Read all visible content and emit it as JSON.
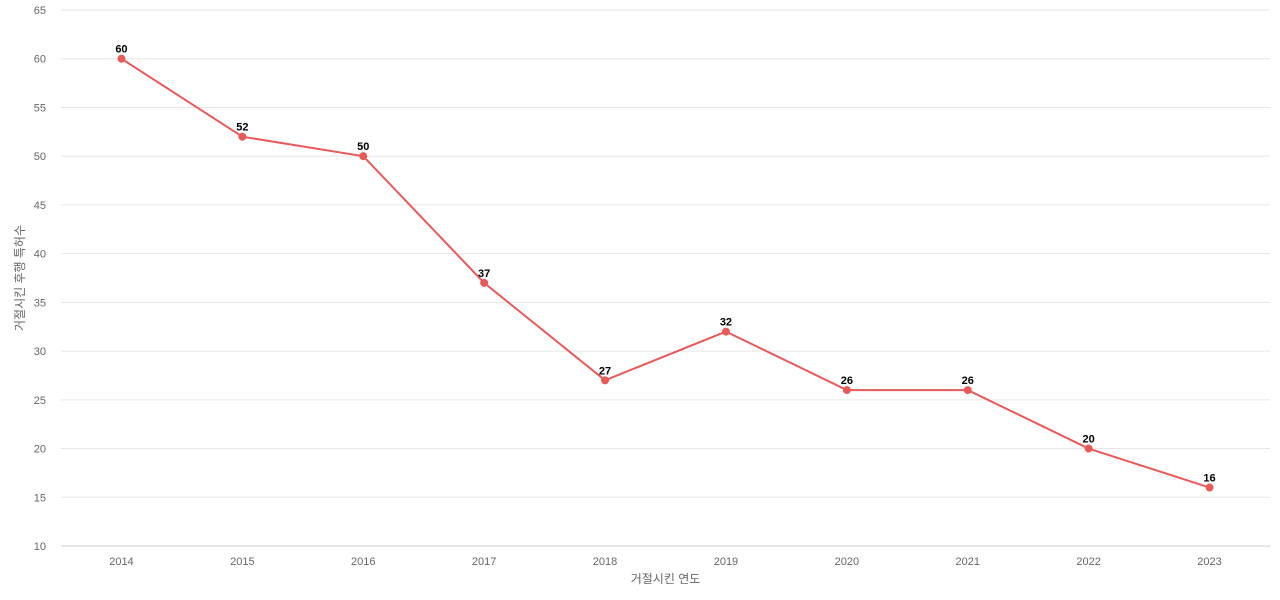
{
  "chart_data": {
    "type": "line",
    "title": "",
    "xlabel": "거절시킨 연도",
    "ylabel": "거절시킨 후행 특허수",
    "categories": [
      "2014",
      "2015",
      "2016",
      "2017",
      "2018",
      "2019",
      "2020",
      "2021",
      "2022",
      "2023"
    ],
    "series": [
      {
        "values": [
          60,
          52,
          50,
          37,
          27,
          32,
          26,
          26,
          20,
          16
        ],
        "color": "#e85a5a"
      }
    ],
    "ylim": [
      10,
      65
    ],
    "yticks": [
      10,
      15,
      20,
      25,
      30,
      35,
      40,
      45,
      50,
      55,
      60,
      65
    ],
    "grid": true,
    "legend": "none",
    "data_labels": true
  }
}
